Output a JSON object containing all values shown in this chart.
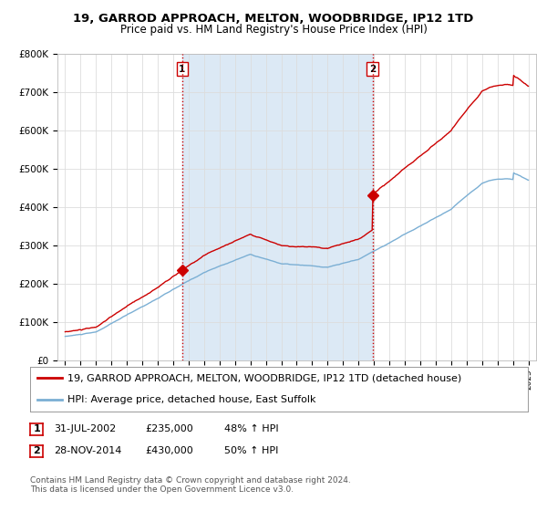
{
  "title": "19, GARROD APPROACH, MELTON, WOODBRIDGE, IP12 1TD",
  "subtitle": "Price paid vs. HM Land Registry's House Price Index (HPI)",
  "ylim": [
    0,
    800000
  ],
  "yticks": [
    0,
    100000,
    200000,
    300000,
    400000,
    500000,
    600000,
    700000,
    800000
  ],
  "ytick_labels": [
    "£0",
    "£100K",
    "£200K",
    "£300K",
    "£400K",
    "£500K",
    "£600K",
    "£700K",
    "£800K"
  ],
  "hpi_color": "#7bafd4",
  "price_color": "#cc0000",
  "vline_color": "#cc0000",
  "shade_color": "#dce9f5",
  "sale1_date": 2002.58,
  "sale1_price": 235000,
  "sale1_label": "1",
  "sale2_date": 2014.91,
  "sale2_price": 430000,
  "sale2_label": "2",
  "legend_price_label": "19, GARROD APPROACH, MELTON, WOODBRIDGE, IP12 1TD (detached house)",
  "legend_hpi_label": "HPI: Average price, detached house, East Suffolk",
  "background_color": "#ffffff",
  "grid_color": "#dddddd",
  "title_fontsize": 9.5,
  "subtitle_fontsize": 8.5,
  "tick_fontsize": 7.5,
  "legend_fontsize": 8,
  "table_fontsize": 8,
  "footnote_fontsize": 6.5
}
